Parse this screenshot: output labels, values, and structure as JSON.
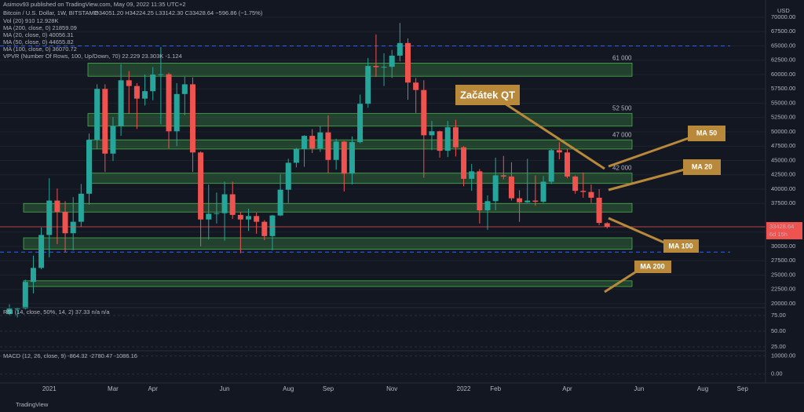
{
  "header": {
    "published": "Asimov93 published on TradingView.com, May 09, 2022 11:35 UTC+2",
    "symbol": "Bitcoin / U.S. Dollar, 1W, BITSTAMP",
    "ohlc_text": "O34051.20 H34224.25 L33142.30 C33428.64 −596.86 (−1.75%)",
    "indicators": [
      "Vol (20)  910  12.928K",
      "MA (200, close, 0)  21859.09",
      "MA (20, close, 0)  40056.31",
      "MA (50, close, 0)  44655.82",
      "MA (100, close, 0)  36070.72",
      "VPVR (Number Of Rows, 100, Up/Down, 70)  22.229  23.303K  -1.124"
    ]
  },
  "rsi": {
    "title": "RSI (14, close, 50%, 14, 2)  37.33  n/a  n/a",
    "yticks": [
      {
        "value": 75,
        "label": "75.00"
      },
      {
        "value": 50,
        "label": "50.00"
      },
      {
        "value": 25,
        "label": "25.00"
      }
    ],
    "ylim": [
      20,
      85
    ]
  },
  "macd": {
    "title": "MACD (12, 26, close, 9)  -864.32  -2780.47  -1086.16",
    "yticks": [
      {
        "value": 10000,
        "label": "10000.00"
      },
      {
        "value": 0,
        "label": "0.00"
      }
    ],
    "ylim": [
      -4000,
      12000
    ]
  },
  "annotations": [
    "Začátek QT",
    "MA 50",
    "MA 20",
    "MA 100",
    "MA 200"
  ],
  "footer": "TradingView",
  "countdown": "6d 15h",
  "chart_data": {
    "type": "candlestick",
    "currency": "USD",
    "up_color": "#26a69a",
    "down_color": "#ef5350",
    "ylim": [
      20000,
      70000
    ],
    "yticks": [
      {
        "value": 70000,
        "label": "70000.00"
      },
      {
        "value": 67500,
        "label": "67500.00"
      },
      {
        "value": 65000,
        "label": "65000.00"
      },
      {
        "value": 62500,
        "label": "62500.00"
      },
      {
        "value": 60000,
        "label": "60000.00"
      },
      {
        "value": 57500,
        "label": "57500.00"
      },
      {
        "value": 55000,
        "label": "55000.00"
      },
      {
        "value": 52500,
        "label": "52500.00"
      },
      {
        "value": 50000,
        "label": "50000.00"
      },
      {
        "value": 47500,
        "label": "47500.00"
      },
      {
        "value": 45000,
        "label": "45000.00"
      },
      {
        "value": 42500,
        "label": "42500.00"
      },
      {
        "value": 40000,
        "label": "40000.00"
      },
      {
        "value": 37500,
        "label": "37500.00"
      },
      {
        "value": 32500,
        "label": "32500.00"
      },
      {
        "value": 30000,
        "label": "30000.00"
      },
      {
        "value": 27500,
        "label": "27500.00"
      },
      {
        "value": 25000,
        "label": "25000.00"
      },
      {
        "value": 22500,
        "label": "22500.00"
      },
      {
        "value": 20000,
        "label": "20000.00"
      }
    ],
    "zones": [
      {
        "label": "61 000",
        "low": 59700,
        "high": 62000
      },
      {
        "label": "52 500",
        "low": 51000,
        "high": 53200
      },
      {
        "label": "47 000",
        "low": 47000,
        "high": 48600
      },
      {
        "label": "42 000",
        "low": 41000,
        "high": 42800
      },
      {
        "low": 36000,
        "high": 37500
      },
      {
        "low": 29500,
        "high": 31500
      },
      {
        "low": 23000,
        "high": 24000
      }
    ],
    "dashed_levels": [
      65000,
      29000
    ],
    "categories": [
      null,
      null,
      null,
      null,
      null,
      "2021",
      null,
      null,
      null,
      null,
      null,
      null,
      null,
      "Mar",
      null,
      null,
      null,
      null,
      "Apr",
      null,
      null,
      null,
      null,
      null,
      null,
      null,
      null,
      "Jun",
      null,
      null,
      null,
      null,
      null,
      null,
      null,
      "Aug",
      null,
      null,
      null,
      null,
      "Sep",
      null,
      null,
      null,
      null,
      null,
      null,
      null,
      "Nov",
      null,
      null,
      null,
      null,
      null,
      null,
      null,
      null,
      "2022",
      null,
      null,
      null,
      "Feb",
      null,
      null,
      null,
      null,
      null,
      null,
      null,
      null,
      "Apr",
      null,
      null,
      null,
      null,
      null,
      null,
      null,
      null,
      "Jun",
      null,
      null,
      null,
      null,
      null,
      null,
      null,
      "Aug",
      null,
      null,
      null,
      null,
      "Sep",
      null,
      null,
      null
    ],
    "ohlc": [
      [
        18200,
        19900,
        18000,
        19150
      ],
      [
        19150,
        19400,
        17600,
        19150
      ],
      [
        19150,
        24200,
        19000,
        23800
      ],
      [
        23800,
        28400,
        21800,
        26250
      ],
      [
        26250,
        33300,
        26000,
        32000
      ],
      [
        32000,
        41900,
        28100,
        38000
      ],
      [
        38000,
        40100,
        30400,
        36000
      ],
      [
        36000,
        37900,
        29000,
        32300
      ],
      [
        32300,
        38600,
        29300,
        34300
      ],
      [
        34300,
        40900,
        33400,
        39200
      ],
      [
        39200,
        49700,
        37300,
        48600
      ],
      [
        48600,
        58300,
        47000,
        57500
      ],
      [
        57500,
        58300,
        43000,
        46200
      ],
      [
        46200,
        52600,
        44900,
        51000
      ],
      [
        51000,
        61800,
        49300,
        59000
      ],
      [
        59000,
        60600,
        53200,
        58000
      ],
      [
        58000,
        58500,
        50500,
        55800
      ],
      [
        55800,
        60000,
        54600,
        57100
      ],
      [
        57100,
        61300,
        55500,
        60000
      ],
      [
        60000,
        64800,
        51300,
        60050
      ],
      [
        60050,
        60300,
        47100,
        50100
      ],
      [
        50100,
        58500,
        47500,
        56600
      ],
      [
        56600,
        59600,
        52900,
        58300
      ],
      [
        58300,
        59500,
        43000,
        46400
      ],
      [
        46400,
        46600,
        30000,
        34700
      ],
      [
        34700,
        40800,
        31200,
        35700
      ],
      [
        35700,
        39400,
        34000,
        35800
      ],
      [
        35800,
        41300,
        31000,
        39100
      ],
      [
        39100,
        41300,
        34800,
        35500
      ],
      [
        35500,
        36000,
        28800,
        34700
      ],
      [
        34700,
        36600,
        32700,
        35300
      ],
      [
        35300,
        35900,
        32200,
        34300
      ],
      [
        34300,
        34600,
        31100,
        31800
      ],
      [
        31800,
        35500,
        29300,
        35400
      ],
      [
        35400,
        42600,
        35300,
        39900
      ],
      [
        39900,
        45300,
        37600,
        44600
      ],
      [
        44600,
        47200,
        43800,
        47000
      ],
      [
        47000,
        49400,
        43900,
        49300
      ],
      [
        49300,
        50500,
        46300,
        47100
      ],
      [
        47100,
        51000,
        46500,
        49900
      ],
      [
        49900,
        52900,
        42800,
        45100
      ],
      [
        45100,
        48800,
        43400,
        48300
      ],
      [
        48300,
        48400,
        39600,
        42700
      ],
      [
        42700,
        49200,
        40800,
        48200
      ],
      [
        48200,
        56500,
        48000,
        54900
      ],
      [
        54900,
        62900,
        54200,
        61500
      ],
      [
        61500,
        67000,
        59600,
        61300
      ],
      [
        61300,
        63700,
        58000,
        61350
      ],
      [
        61350,
        64300,
        59400,
        63300
      ],
      [
        63300,
        69000,
        62300,
        65500
      ],
      [
        65500,
        66300,
        55600,
        58600
      ],
      [
        58600,
        59400,
        53300,
        57300
      ],
      [
        57300,
        59000,
        42000,
        49400
      ],
      [
        49400,
        51900,
        46800,
        50100
      ],
      [
        50100,
        50200,
        45500,
        46700
      ],
      [
        46700,
        51900,
        45600,
        50800
      ],
      [
        50800,
        52100,
        45700,
        47300
      ],
      [
        47300,
        47500,
        40500,
        41800
      ],
      [
        41800,
        44400,
        39700,
        43100
      ],
      [
        43100,
        43500,
        34000,
        36300
      ],
      [
        36300,
        38900,
        32900,
        37900
      ],
      [
        37900,
        45500,
        36300,
        42400
      ],
      [
        42400,
        45800,
        41700,
        42200
      ],
      [
        42200,
        44700,
        38000,
        38400
      ],
      [
        38400,
        39800,
        34300,
        37700
      ],
      [
        37700,
        45300,
        37600,
        38000
      ],
      [
        38000,
        42400,
        37100,
        37800
      ],
      [
        37800,
        42300,
        37600,
        41300
      ],
      [
        41300,
        47000,
        40900,
        46800
      ],
      [
        46800,
        48200,
        45200,
        46400
      ],
      [
        46400,
        47000,
        41900,
        42200
      ],
      [
        42200,
        42400,
        39200,
        39700
      ],
      [
        39700,
        42900,
        38500,
        39500
      ],
      [
        39500,
        40800,
        37600,
        38500
      ],
      [
        38500,
        40000,
        33700,
        34100
      ],
      [
        34051.2,
        34224.25,
        33142.3,
        33428.64
      ],
      null,
      null,
      null,
      null,
      null,
      null,
      null,
      null,
      null,
      null,
      null,
      null,
      null,
      null,
      null,
      null,
      null,
      null,
      null,
      null
    ]
  }
}
